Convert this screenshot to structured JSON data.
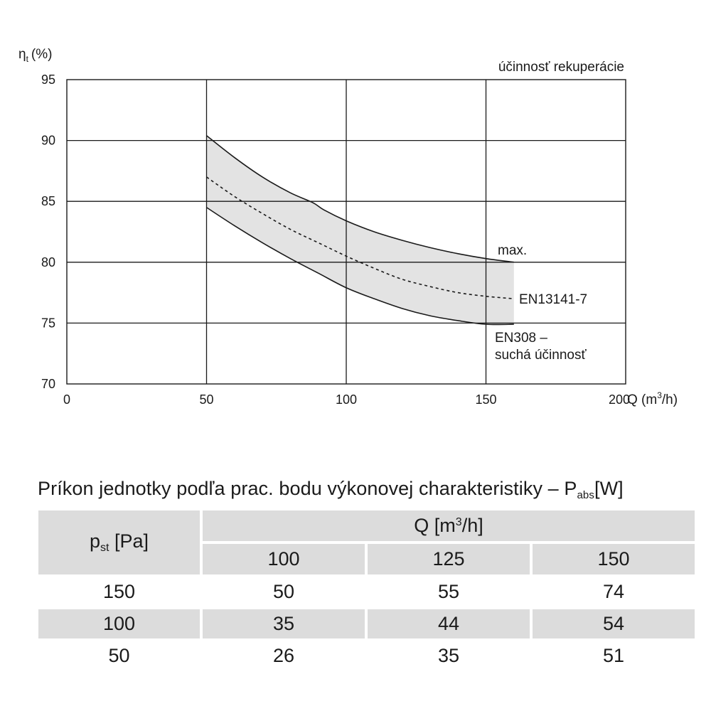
{
  "chart_data": {
    "type": "line",
    "ylabel_symbol": "η",
    "ylabel_sub": "t",
    "ylabel_unit": "(%)",
    "xlabel_prefix": "Q (m",
    "xlabel_sup": "3",
    "xlabel_suffix": "/h)",
    "title": "účinnosť rekuperácie",
    "xlim": [
      0,
      200
    ],
    "ylim": [
      70,
      95
    ],
    "x_ticks": [
      0,
      50,
      100,
      150,
      200
    ],
    "y_ticks": [
      70,
      75,
      80,
      85,
      90,
      95
    ],
    "series": [
      {
        "name": "max.",
        "style": "solid",
        "points": [
          [
            50,
            90.4
          ],
          [
            60,
            88.6
          ],
          [
            70,
            87.0
          ],
          [
            80,
            85.7
          ],
          [
            88,
            84.9
          ],
          [
            92,
            84.3
          ],
          [
            100,
            83.4
          ],
          [
            110,
            82.5
          ],
          [
            120,
            81.8
          ],
          [
            130,
            81.2
          ],
          [
            140,
            80.7
          ],
          [
            150,
            80.3
          ],
          [
            160,
            80.0
          ]
        ]
      },
      {
        "name": "EN13141-7",
        "style": "dashed",
        "points": [
          [
            50,
            87.0
          ],
          [
            60,
            85.4
          ],
          [
            70,
            84.0
          ],
          [
            80,
            82.7
          ],
          [
            90,
            81.6
          ],
          [
            100,
            80.5
          ],
          [
            110,
            79.5
          ],
          [
            120,
            78.6
          ],
          [
            130,
            78.0
          ],
          [
            140,
            77.5
          ],
          [
            150,
            77.2
          ],
          [
            160,
            77.0
          ]
        ]
      },
      {
        "name": "EN308 – suchá účinnosť",
        "style": "solid",
        "points": [
          [
            50,
            84.5
          ],
          [
            60,
            83.0
          ],
          [
            70,
            81.6
          ],
          [
            80,
            80.3
          ],
          [
            90,
            79.1
          ],
          [
            100,
            77.9
          ],
          [
            110,
            77.0
          ],
          [
            120,
            76.2
          ],
          [
            130,
            75.6
          ],
          [
            140,
            75.2
          ],
          [
            150,
            74.9
          ],
          [
            160,
            74.9
          ]
        ]
      }
    ],
    "band_between": [
      "max.",
      "EN308 – suchá účinnosť"
    ],
    "annotations": {
      "max_label": "max.",
      "en13141_label": "EN13141-7",
      "en308_line1": "EN308 –",
      "en308_line2": "suchá účinnosť"
    }
  },
  "table": {
    "title": "Príkon jednotky podľa prac. bodu výkonovej charakteristiky – P",
    "title_sub": "abs",
    "title_unit": "[W]",
    "pst_label": "p",
    "pst_sub": "st",
    "pst_unit": " [Pa]",
    "q_label": "Q [m",
    "q_sup": "3",
    "q_suffix": "/h]",
    "q_values": [
      "100",
      "125",
      "150"
    ],
    "rows": [
      {
        "pst": "150",
        "values": [
          "50",
          "55",
          "74"
        ]
      },
      {
        "pst": "100",
        "values": [
          "35",
          "44",
          "54"
        ]
      },
      {
        "pst": "50",
        "values": [
          "26",
          "35",
          "51"
        ]
      }
    ]
  }
}
